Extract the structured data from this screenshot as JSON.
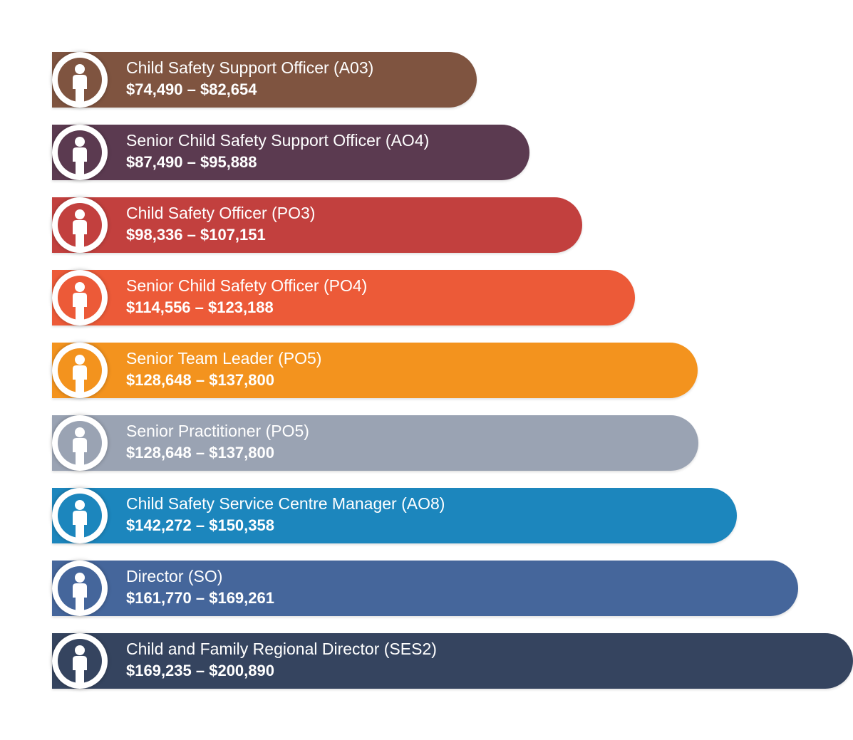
{
  "rows": [
    {
      "title": "Child Safety Support Officer (A03)",
      "salary": " $74,490 – $82,654",
      "color": "#7f5440",
      "icon": "person-icon"
    },
    {
      "title": "Senior Child Safety Support Officer (AO4)",
      "salary": "$87,490 – $95,888",
      "color": "#5b3a50",
      "icon": "person-icon"
    },
    {
      "title": "Child Safety Officer (PO3)",
      "salary": "$98,336 – $107,151",
      "color": "#c2403e",
      "icon": "person-icon"
    },
    {
      "title": "Senior Child Safety Officer (PO4)",
      "salary": "$114,556 – $123,188",
      "color": "#ec5a38",
      "icon": "person-icon"
    },
    {
      "title": "Senior Team Leader (PO5)",
      "salary": "$128,648 – $137,800",
      "color": "#f3931e",
      "icon": "person-icon"
    },
    {
      "title": "Senior Practitioner (PO5)",
      "salary": "$128,648 – $137,800",
      "color": "#9aa3b3",
      "icon": "person-icon"
    },
    {
      "title": "Child Safety Service Centre Manager (AO8)",
      "salary": "$142,272 – $150,358",
      "color": "#1c86bd",
      "icon": "person-icon"
    },
    {
      "title": "Director (SO)",
      "salary": "$161,770 – $169,261",
      "color": "#45669b",
      "icon": "person-icon"
    },
    {
      "title": "Child and Family Regional Director  (SES2)",
      "salary": "$169,235 – $200,890",
      "color": "#35445f",
      "icon": "person-icon"
    }
  ]
}
